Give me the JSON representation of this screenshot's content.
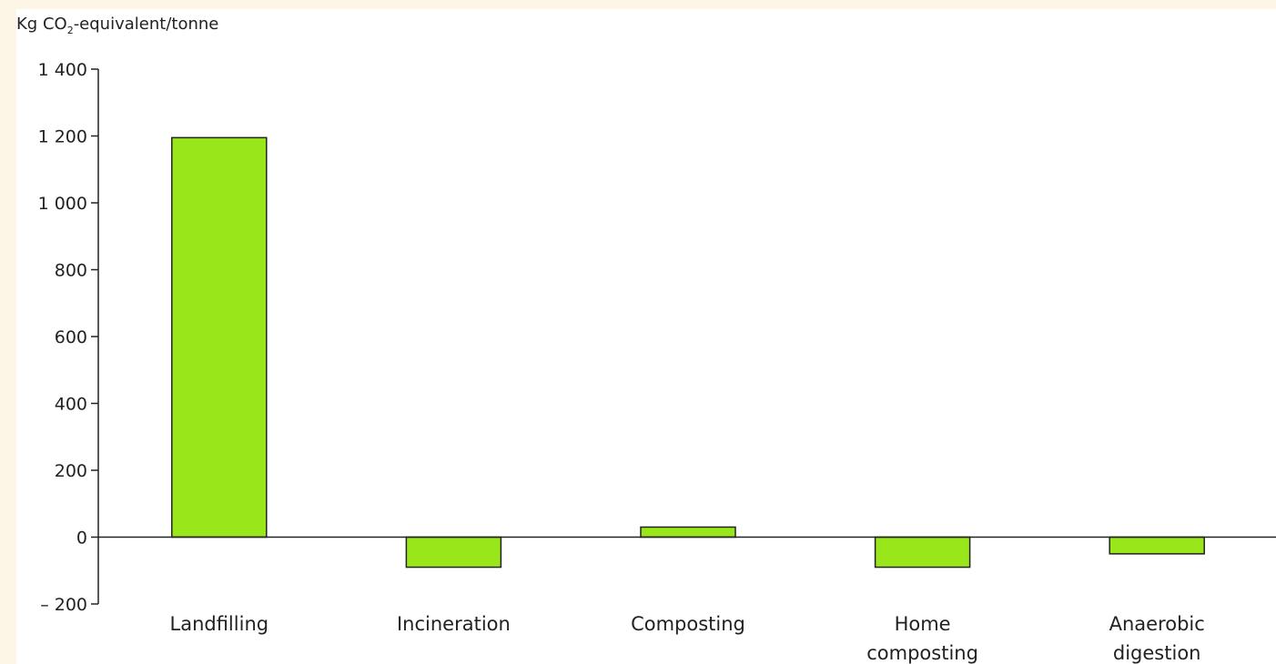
{
  "chart_data": {
    "type": "bar",
    "categories": [
      [
        "Landfilling"
      ],
      [
        "Incineration"
      ],
      [
        "Composting"
      ],
      [
        "Home",
        "composting"
      ],
      [
        "Anaerobic",
        "digestion"
      ]
    ],
    "values": [
      1195,
      -90,
      30,
      -90,
      -50
    ],
    "ylabel_main": "Kg CO",
    "ylabel_sub": "2",
    "ylabel_rest": "-equivalent/tonne",
    "yticks": [
      {
        "value": 1400,
        "label": "1 400"
      },
      {
        "value": 1200,
        "label": "1 200"
      },
      {
        "value": 1000,
        "label": "1 000"
      },
      {
        "value": 800,
        "label": "800"
      },
      {
        "value": 600,
        "label": "600"
      },
      {
        "value": 400,
        "label": "400"
      },
      {
        "value": 200,
        "label": "200"
      },
      {
        "value": 0,
        "label": "0"
      },
      {
        "value": -200,
        "label": "– 200"
      }
    ],
    "ylim": [
      -200,
      1400
    ],
    "title": "",
    "xlabel": "",
    "grid": false,
    "bar_color": "#99e61a",
    "bar_stroke": "#222222"
  }
}
